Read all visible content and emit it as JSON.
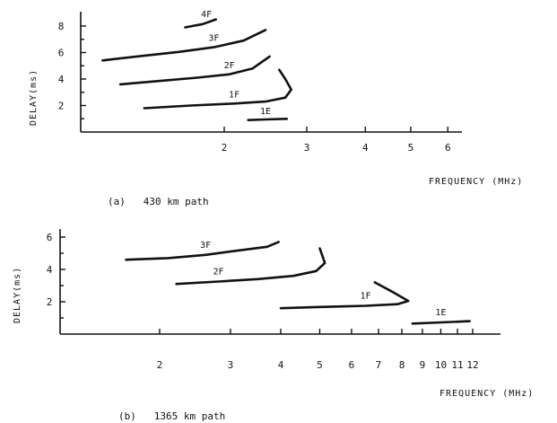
{
  "chart_data": [
    {
      "type": "line",
      "caption": "(a)   430 km path",
      "xlabel": "FREQUENCY (MHz)",
      "ylabel": "DELAY(ms)",
      "x_scale": "log",
      "xlim": [
        1.0,
        6.5
      ],
      "ylim": [
        0,
        9
      ],
      "x_ticks": [
        2,
        3,
        4,
        5,
        6
      ],
      "y_ticks": [
        2,
        4,
        6,
        8
      ],
      "series": [
        {
          "name": "4F",
          "x": [
            1.65,
            1.8,
            1.92
          ],
          "y": [
            7.9,
            8.15,
            8.5
          ]
        },
        {
          "name": "3F",
          "x": [
            1.1,
            1.3,
            1.6,
            1.9,
            2.2,
            2.45
          ],
          "y": [
            5.4,
            5.7,
            6.05,
            6.4,
            6.9,
            7.7
          ]
        },
        {
          "name": "2F",
          "x": [
            1.2,
            1.45,
            1.75,
            2.05,
            2.3,
            2.5
          ],
          "y": [
            3.6,
            3.85,
            4.1,
            4.35,
            4.8,
            5.7
          ]
        },
        {
          "name": "1F",
          "x": [
            1.35,
            1.7,
            2.1,
            2.45,
            2.7,
            2.78,
            2.7,
            2.62
          ],
          "y": [
            1.8,
            2.0,
            2.15,
            2.3,
            2.6,
            3.2,
            4.0,
            4.7
          ]
        },
        {
          "name": "1E",
          "x": [
            2.25,
            2.45,
            2.72
          ],
          "y": [
            0.9,
            0.95,
            1.0
          ]
        }
      ]
    },
    {
      "type": "line",
      "caption": "(b)   1365 km path",
      "xlabel": "FREQUENCY (MHz)",
      "ylabel": "DELAY(ms)",
      "x_scale": "log",
      "xlim": [
        1.3,
        12.2
      ],
      "ylim": [
        0,
        6
      ],
      "x_ticks": [
        2,
        3,
        4,
        5,
        6,
        7,
        8,
        9,
        10,
        11,
        12
      ],
      "y_ticks": [
        2,
        4,
        6
      ],
      "series": [
        {
          "name": "3F",
          "x": [
            1.65,
            2.1,
            2.6,
            3.2,
            3.7,
            3.95
          ],
          "y": [
            4.6,
            4.7,
            4.9,
            5.2,
            5.4,
            5.7
          ]
        },
        {
          "name": "2F",
          "x": [
            2.2,
            2.8,
            3.5,
            4.3,
            4.9,
            5.15,
            5.0
          ],
          "y": [
            3.1,
            3.25,
            3.4,
            3.6,
            3.9,
            4.4,
            5.3
          ]
        },
        {
          "name": "1F",
          "x": [
            4.0,
            5.0,
            6.5,
            7.8,
            8.3,
            7.6,
            6.85
          ],
          "y": [
            1.6,
            1.68,
            1.75,
            1.85,
            2.05,
            2.6,
            3.2
          ]
        },
        {
          "name": "1E",
          "x": [
            8.5,
            10,
            11.8
          ],
          "y": [
            0.65,
            0.72,
            0.8
          ]
        }
      ]
    }
  ]
}
